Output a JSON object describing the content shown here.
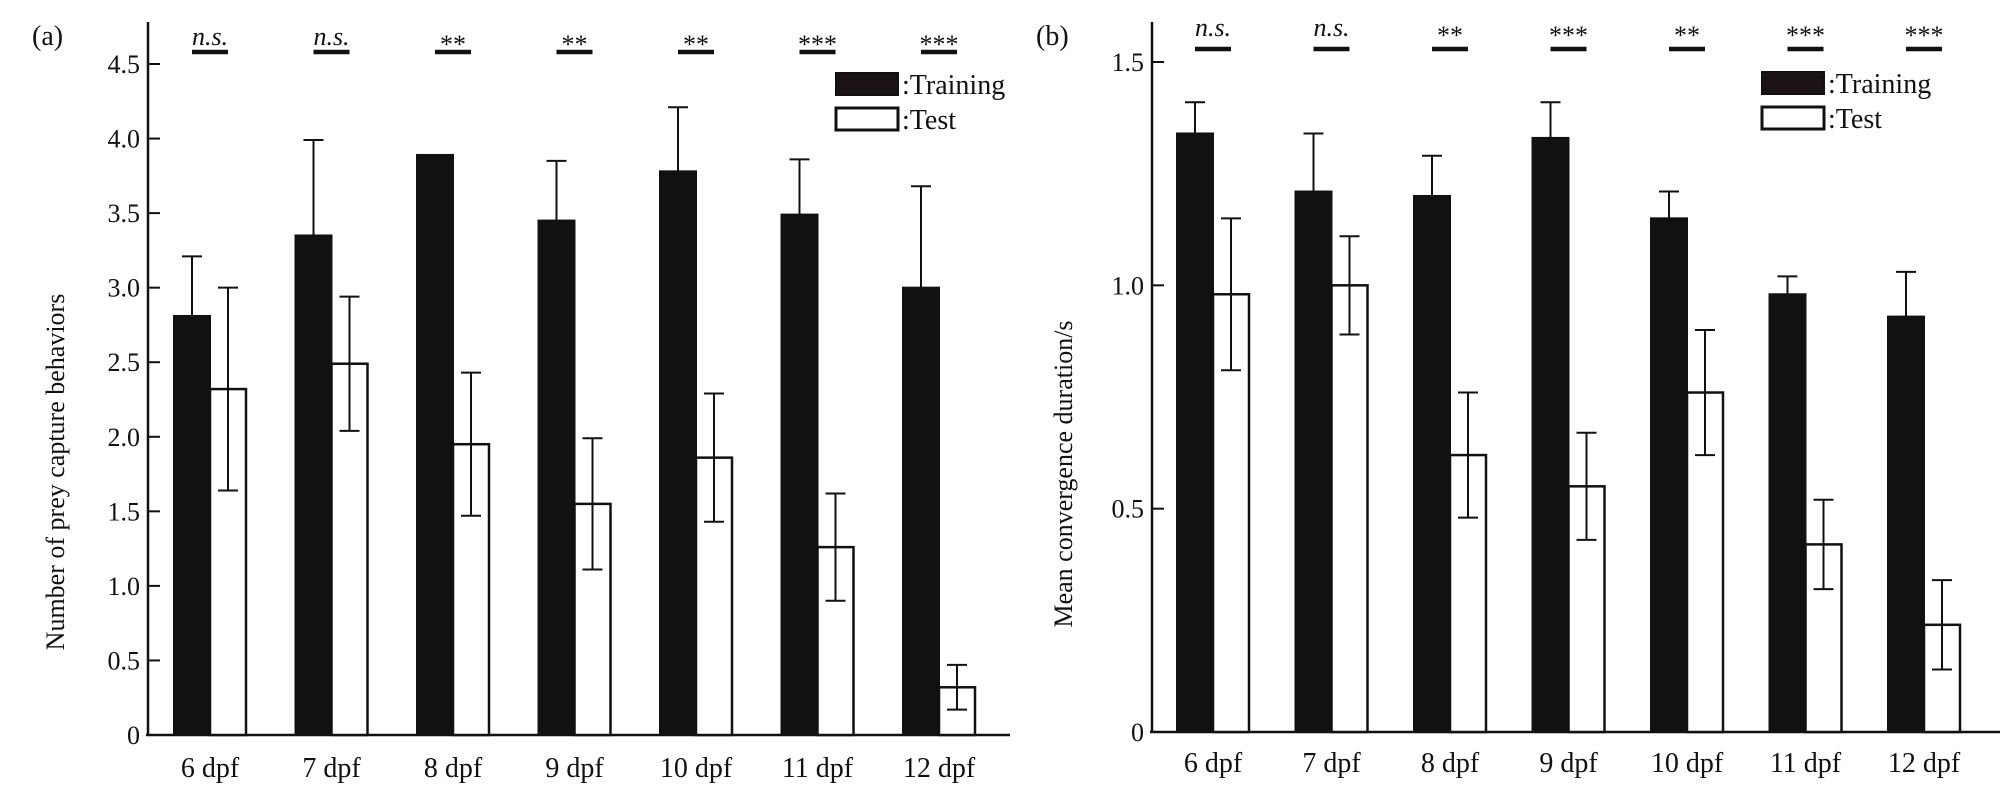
{
  "chart_data": [
    {
      "type": "bar",
      "panel_label": "(a)",
      "categories": [
        "6 dpf",
        "7 dpf",
        "8 dpf",
        "9 dpf",
        "10 dpf",
        "11 dpf",
        "12 dpf"
      ],
      "series": [
        {
          "name": ":Training",
          "values": [
            2.81,
            3.35,
            3.89,
            3.45,
            3.78,
            3.49,
            3.0
          ],
          "error_upper": [
            0.4,
            0.64,
            0.0,
            0.4,
            0.43,
            0.37,
            0.68
          ],
          "error_lower": [
            0.4,
            0.64,
            0.0,
            0.4,
            0.43,
            0.37,
            0.68
          ],
          "color": "#111111"
        },
        {
          "name": ":Test",
          "values": [
            2.32,
            2.49,
            1.95,
            1.55,
            1.86,
            1.26,
            0.32
          ],
          "error_upper": [
            0.68,
            0.45,
            0.48,
            0.44,
            0.43,
            0.36,
            0.15
          ],
          "error_lower": [
            0.68,
            0.45,
            0.48,
            0.44,
            0.43,
            0.36,
            0.15
          ],
          "color": "#ffffff"
        }
      ],
      "significance": [
        "n.s.",
        "n.s.",
        "**",
        "**",
        "**",
        "***",
        "***"
      ],
      "ylabel": "Number of prey capture behaviors",
      "xlabel": "",
      "ylim": [
        0,
        4.5
      ],
      "yticks": [
        0,
        0.5,
        1.0,
        1.5,
        2.0,
        2.5,
        3.0,
        3.5,
        4.0,
        4.5
      ],
      "ytick_labels": [
        "0",
        "0.5",
        "1.0",
        "1.5",
        "2.0",
        "2.5",
        "3.0",
        "3.5",
        "4.0",
        "4.5"
      ],
      "grid": false,
      "legend_position": "top-right"
    },
    {
      "type": "bar",
      "panel_label": "(b)",
      "categories": [
        "6 dpf",
        "7 dpf",
        "8 dpf",
        "9 dpf",
        "10 dpf",
        "11 dpf",
        "12 dpf"
      ],
      "series": [
        {
          "name": ":Training",
          "values": [
            1.34,
            1.21,
            1.2,
            1.33,
            1.15,
            0.98,
            0.93
          ],
          "error_upper": [
            0.07,
            0.13,
            0.09,
            0.08,
            0.06,
            0.04,
            0.1
          ],
          "error_lower": [
            0.07,
            0.13,
            0.09,
            0.08,
            0.06,
            0.04,
            0.1
          ],
          "color": "#111111"
        },
        {
          "name": ":Test",
          "values": [
            0.98,
            1.0,
            0.62,
            0.55,
            0.76,
            0.42,
            0.24
          ],
          "error_upper": [
            0.17,
            0.11,
            0.14,
            0.12,
            0.14,
            0.1,
            0.1
          ],
          "error_lower": [
            0.17,
            0.11,
            0.14,
            0.12,
            0.14,
            0.1,
            0.1
          ],
          "color": "#ffffff"
        }
      ],
      "significance": [
        "n.s.",
        "n.s.",
        "**",
        "***",
        "**",
        "***",
        "***"
      ],
      "ylabel": "Mean convergence duration/s",
      "xlabel": "",
      "ylim": [
        0,
        1.5
      ],
      "yticks": [
        0,
        0.5,
        1.0,
        1.5
      ],
      "ytick_labels": [
        "0",
        "0.5",
        "1.0",
        "1.5"
      ],
      "grid": false,
      "legend_position": "top-right"
    }
  ]
}
